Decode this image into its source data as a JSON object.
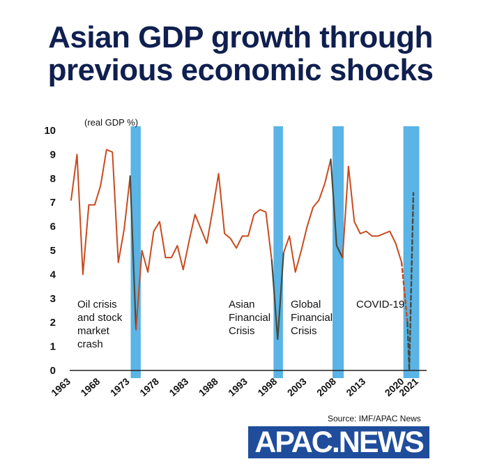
{
  "header": {
    "title_line1": "Asian GDP growth through",
    "title_line2": "previous economic shocks"
  },
  "footer": {
    "source": "Source: IMF/APAC News",
    "logo_text": "APAC.NEWS"
  },
  "colors": {
    "title": "#0f1f4f",
    "line_main": "#c84a1e",
    "line_dark": "#4a4a3a",
    "shock_band": "#5ab4e6",
    "logo_bg": "#1f4d9c"
  },
  "chart_data": {
    "type": "line",
    "title": "",
    "ylabel": "(real GDP %)",
    "xlabel": "",
    "xlim": [
      1963,
      2021
    ],
    "ylim": [
      0,
      10
    ],
    "yticks": [
      0,
      1,
      2,
      3,
      4,
      5,
      6,
      7,
      8,
      9,
      10
    ],
    "xticks": [
      1963,
      1968,
      1973,
      1978,
      1983,
      1988,
      1993,
      1998,
      2003,
      2008,
      2013,
      2020,
      2021
    ],
    "grid": false,
    "shocks": [
      {
        "start": 1973.1,
        "end": 1974.8,
        "label": [
          "Oil crisis",
          "and stock",
          "market",
          "crash"
        ]
      },
      {
        "start": 1997.3,
        "end": 1998.9,
        "label": [
          "Asian",
          "Financial",
          "Crisis"
        ]
      },
      {
        "start": 2007.3,
        "end": 2009.2,
        "label": [
          "Global",
          "Financial",
          "Crisis"
        ]
      },
      {
        "start": 2019.3,
        "end": 2022.0,
        "label": [
          "COVID-19"
        ]
      }
    ],
    "series": [
      {
        "style": "solid",
        "x": [
          1963,
          1964,
          1965,
          1966,
          1967,
          1968,
          1969,
          1970,
          1971,
          1972,
          1973
        ],
        "y": [
          7.1,
          9.0,
          4.0,
          6.9,
          6.9,
          7.7,
          9.2,
          9.1,
          4.5,
          5.9,
          8.1
        ]
      },
      {
        "style": "dark",
        "x": [
          1973,
          1974
        ],
        "y": [
          8.1,
          1.7
        ]
      },
      {
        "style": "solid",
        "x": [
          1974,
          1975,
          1976,
          1977,
          1978,
          1979,
          1980,
          1981,
          1982,
          1983,
          1984,
          1985,
          1986,
          1987,
          1988,
          1989,
          1990,
          1991,
          1992,
          1993,
          1994,
          1995,
          1996,
          1997
        ],
        "y": [
          1.7,
          5.0,
          4.1,
          5.8,
          6.2,
          4.7,
          4.7,
          5.2,
          4.2,
          5.4,
          6.5,
          5.9,
          5.3,
          6.7,
          8.2,
          5.7,
          5.5,
          5.1,
          5.6,
          5.6,
          6.5,
          6.7,
          6.6,
          4.6
        ]
      },
      {
        "style": "dark",
        "x": [
          1997,
          1998,
          1999
        ],
        "y": [
          4.6,
          1.3,
          4.9
        ]
      },
      {
        "style": "solid",
        "x": [
          1999,
          2000,
          2001,
          2002,
          2003,
          2004,
          2005,
          2006,
          2007
        ],
        "y": [
          4.9,
          5.6,
          4.1,
          5.0,
          6.0,
          6.8,
          7.1,
          7.8,
          8.8
        ]
      },
      {
        "style": "dark",
        "x": [
          2007,
          2008,
          2009
        ],
        "y": [
          8.8,
          5.2,
          4.7
        ]
      },
      {
        "style": "solid",
        "x": [
          2009,
          2010,
          2011,
          2012,
          2013,
          2014,
          2015,
          2016,
          2017,
          2018,
          2019
        ],
        "y": [
          4.7,
          8.5,
          6.2,
          5.7,
          5.8,
          5.6,
          5.6,
          5.7,
          5.8,
          5.3,
          4.5
        ]
      },
      {
        "style": "dashed-red",
        "x": [
          2019,
          2020
        ],
        "y": [
          4.5,
          2.0
        ]
      },
      {
        "style": "dashed-dark",
        "x": [
          2020,
          2020.3,
          2021
        ],
        "y": [
          2.0,
          0.0,
          7.4
        ]
      }
    ]
  }
}
